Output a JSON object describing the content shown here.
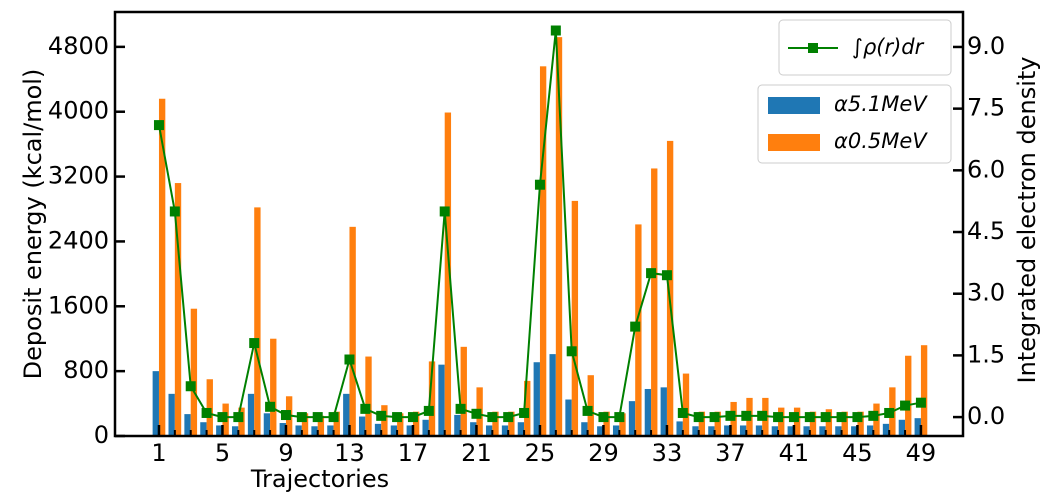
{
  "chart_data": {
    "type": "bar",
    "xlabel": "Trajectories",
    "ylabel": "Deposit energy (kcal/mol)",
    "y2label": "Integrated electron density",
    "x": [
      1,
      2,
      3,
      4,
      5,
      6,
      7,
      8,
      9,
      10,
      11,
      12,
      13,
      14,
      15,
      16,
      17,
      18,
      19,
      20,
      21,
      22,
      23,
      24,
      25,
      26,
      27,
      28,
      29,
      30,
      31,
      32,
      33,
      34,
      35,
      36,
      37,
      38,
      39,
      40,
      41,
      42,
      43,
      44,
      45,
      46,
      47,
      48,
      49
    ],
    "xlim": [
      -1.77,
      51.65
    ],
    "xticks": [
      1,
      5,
      9,
      13,
      17,
      21,
      25,
      29,
      33,
      37,
      41,
      45,
      49
    ],
    "ylim": [
      0,
      5230
    ],
    "yticks": [
      0,
      800,
      1600,
      2400,
      3200,
      4000,
      4800
    ],
    "y2lim": [
      -0.46,
      9.85
    ],
    "y2ticks": [
      {
        "value": 0,
        "label": "0.0"
      },
      {
        "value": 1.5,
        "label": "1.5"
      },
      {
        "value": 3,
        "label": "3.0"
      },
      {
        "value": 4.5,
        "label": "4.5"
      },
      {
        "value": 6,
        "label": "6.0"
      },
      {
        "value": 7.5,
        "label": "7.5"
      },
      {
        "value": 9,
        "label": "9.0"
      }
    ],
    "series": [
      {
        "name": "α5.1MeV",
        "color": "#1f77b4",
        "values": [
          800,
          520,
          270,
          170,
          130,
          120,
          520,
          280,
          160,
          130,
          120,
          130,
          520,
          240,
          150,
          130,
          130,
          200,
          880,
          260,
          170,
          130,
          130,
          170,
          910,
          1010,
          450,
          170,
          120,
          130,
          430,
          580,
          600,
          180,
          120,
          120,
          130,
          130,
          130,
          120,
          120,
          120,
          120,
          120,
          120,
          130,
          150,
          200,
          220
        ]
      },
      {
        "name": "α0.5MeV",
        "color": "#ff7f0e",
        "values": [
          4160,
          3120,
          1570,
          700,
          400,
          350,
          2820,
          1200,
          490,
          280,
          250,
          300,
          2580,
          980,
          380,
          280,
          300,
          920,
          3990,
          1100,
          600,
          300,
          300,
          680,
          4560,
          4920,
          2900,
          750,
          300,
          280,
          2610,
          3300,
          3640,
          770,
          300,
          300,
          420,
          470,
          470,
          350,
          350,
          300,
          330,
          300,
          300,
          400,
          600,
          990,
          1120
        ]
      },
      {
        "name": "∫ρ(r)dr",
        "color": "#008000",
        "axis": "y2",
        "values": [
          7.1,
          5.0,
          0.75,
          0.1,
          0.0,
          0.0,
          1.8,
          0.25,
          0.05,
          0.0,
          0.0,
          0.0,
          1.4,
          0.2,
          0.03,
          0.0,
          0.0,
          0.15,
          5.0,
          0.2,
          0.08,
          0.0,
          0.0,
          0.1,
          5.65,
          9.4,
          1.6,
          0.15,
          0.0,
          0.0,
          2.2,
          3.5,
          3.45,
          0.1,
          0.0,
          0.0,
          0.03,
          0.03,
          0.03,
          0.0,
          0.0,
          0.0,
          0.0,
          0.0,
          0.0,
          0.03,
          0.1,
          0.28,
          0.35
        ]
      }
    ]
  }
}
